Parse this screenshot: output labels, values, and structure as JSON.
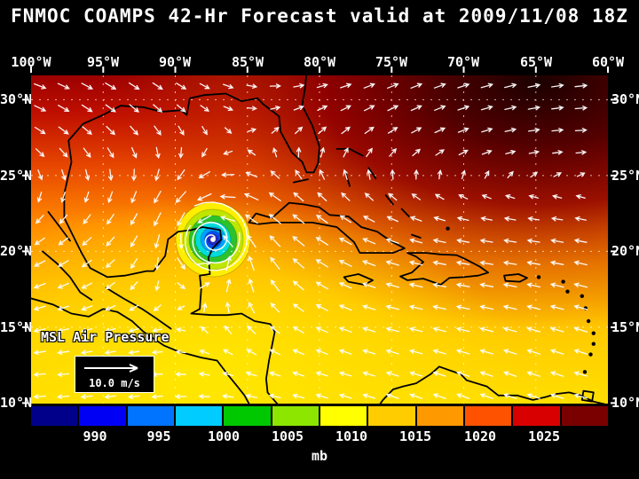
{
  "title": "FNMOC COAMPS 42-Hr Forecast valid at 2009/11/08 18Z",
  "map": {
    "field_label": "MSL Air Pressure",
    "wind_legend": "10.0 m/s"
  },
  "axes": {
    "lon": [
      "100°W",
      "95°W",
      "90°W",
      "85°W",
      "80°W",
      "75°W",
      "70°W",
      "65°W",
      "60°W"
    ],
    "lat": [
      "30°N",
      "25°N",
      "20°N",
      "15°N",
      "10°N"
    ]
  },
  "colorbar": {
    "tick_labels": [
      "990",
      "995",
      "1000",
      "1005",
      "1010",
      "1015",
      "1020",
      "1025"
    ],
    "unit": "mb",
    "colors": [
      "#00008b",
      "#0000f5",
      "#0073ff",
      "#00ccff",
      "#00c800",
      "#8ce600",
      "#ffff00",
      "#ffcc00",
      "#ff9900",
      "#ff5200",
      "#d80000",
      "#7a0000"
    ]
  },
  "colors": {
    "background": "#000000",
    "text": "#ffffff",
    "coastline": "#000000",
    "wind_arrows": "#ffffff"
  }
}
